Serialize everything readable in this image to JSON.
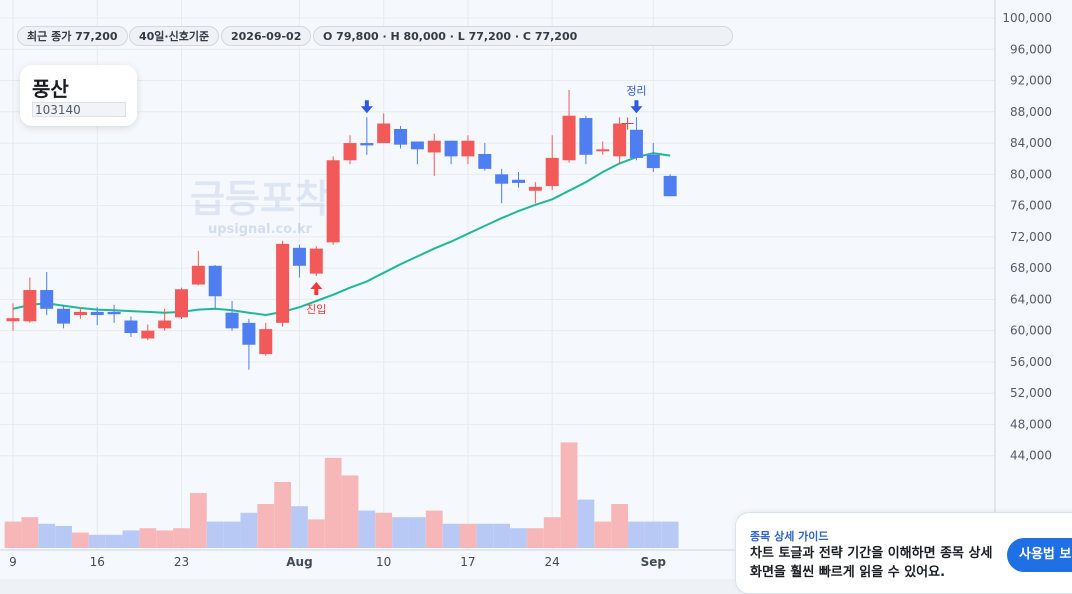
{
  "header": {
    "close_label": "최근 종가 77,200",
    "basis_label": "40일·신호기준",
    "date_label": "2026-09-02",
    "ohlc_label": "O 79,800 · H 80,000 · L 77,200 · C 77,200"
  },
  "stock": {
    "name": "풍산",
    "code": "103140"
  },
  "watermark": {
    "title": "급등포착",
    "url": "upsignal.co.kr"
  },
  "guide": {
    "title": "종목 상세 가이드",
    "body": "차트 토글과 전략 기간을 이해하면 종목 상세 화면을 훨씬 빠르게 읽을 수 있어요.",
    "button_label": "사용법 보기"
  },
  "colors": {
    "up": "#f25a5a",
    "down": "#4f7ef0",
    "ma": "#1fb89a",
    "vol_up": "#f7b7b9",
    "vol_down": "#b9c9f5",
    "grid": "#e6ebf2"
  },
  "chart_data": {
    "type": "candlestick",
    "ylim": [
      40000,
      100000
    ],
    "y_ticks": [
      44000,
      48000,
      52000,
      56000,
      60000,
      64000,
      68000,
      72000,
      76000,
      80000,
      84000,
      88000,
      92000,
      96000,
      100000
    ],
    "x_ticks": [
      {
        "index": 0,
        "label": "9"
      },
      {
        "index": 5,
        "label": "16"
      },
      {
        "index": 10,
        "label": "23"
      },
      {
        "index": 17,
        "label": "Aug"
      },
      {
        "index": 22,
        "label": "10"
      },
      {
        "index": 27,
        "label": "17"
      },
      {
        "index": 32,
        "label": "24"
      },
      {
        "index": 38,
        "label": "Sep"
      }
    ],
    "candles": [
      {
        "o": 61200,
        "h": 63500,
        "l": 60000,
        "c": 61600
      },
      {
        "o": 61200,
        "h": 66800,
        "l": 61000,
        "c": 65200
      },
      {
        "o": 65200,
        "h": 67500,
        "l": 62000,
        "c": 62800
      },
      {
        "o": 62800,
        "h": 63300,
        "l": 60300,
        "c": 60900
      },
      {
        "o": 62000,
        "h": 63000,
        "l": 61500,
        "c": 62400
      },
      {
        "o": 62400,
        "h": 63000,
        "l": 60700,
        "c": 62000
      },
      {
        "o": 62400,
        "h": 63300,
        "l": 61000,
        "c": 62100
      },
      {
        "o": 61300,
        "h": 61800,
        "l": 59200,
        "c": 59700
      },
      {
        "o": 59000,
        "h": 60800,
        "l": 58800,
        "c": 60000
      },
      {
        "o": 60300,
        "h": 62800,
        "l": 60000,
        "c": 61300
      },
      {
        "o": 61700,
        "h": 65500,
        "l": 61500,
        "c": 65300
      },
      {
        "o": 65900,
        "h": 70200,
        "l": 65800,
        "c": 68300
      },
      {
        "o": 68300,
        "h": 68400,
        "l": 62800,
        "c": 64400
      },
      {
        "o": 62300,
        "h": 63800,
        "l": 60000,
        "c": 60300
      },
      {
        "o": 61000,
        "h": 61500,
        "l": 55000,
        "c": 58200
      },
      {
        "o": 57000,
        "h": 61000,
        "l": 56800,
        "c": 60200
      },
      {
        "o": 61000,
        "h": 71500,
        "l": 60500,
        "c": 71100
      },
      {
        "o": 70600,
        "h": 71000,
        "l": 66800,
        "c": 68300
      },
      {
        "o": 67300,
        "h": 70800,
        "l": 67000,
        "c": 70500
      },
      {
        "o": 71300,
        "h": 82300,
        "l": 71000,
        "c": 81800
      },
      {
        "o": 81800,
        "h": 85000,
        "l": 81300,
        "c": 84000
      },
      {
        "o": 84000,
        "h": 87300,
        "l": 82500,
        "c": 83700
      },
      {
        "o": 84000,
        "h": 87800,
        "l": 84000,
        "c": 86500
      },
      {
        "o": 85800,
        "h": 86200,
        "l": 83300,
        "c": 83800
      },
      {
        "o": 84200,
        "h": 84200,
        "l": 81300,
        "c": 83200
      },
      {
        "o": 82800,
        "h": 85200,
        "l": 79800,
        "c": 84300
      },
      {
        "o": 84300,
        "h": 84300,
        "l": 81300,
        "c": 82300
      },
      {
        "o": 82300,
        "h": 85000,
        "l": 81300,
        "c": 84300
      },
      {
        "o": 82600,
        "h": 84000,
        "l": 80500,
        "c": 80700
      },
      {
        "o": 80000,
        "h": 80700,
        "l": 76300,
        "c": 78800
      },
      {
        "o": 79300,
        "h": 80300,
        "l": 78300,
        "c": 78900
      },
      {
        "o": 77900,
        "h": 79000,
        "l": 76300,
        "c": 78400
      },
      {
        "o": 78500,
        "h": 85000,
        "l": 78000,
        "c": 82100
      },
      {
        "o": 81800,
        "h": 90800,
        "l": 81500,
        "c": 87500
      },
      {
        "o": 87200,
        "h": 87500,
        "l": 81300,
        "c": 82500
      },
      {
        "o": 83200,
        "h": 84200,
        "l": 82500,
        "c": 83200
      },
      {
        "o": 82300,
        "h": 87300,
        "l": 81300,
        "c": 86500
      },
      {
        "o": 85700,
        "h": 87300,
        "l": 81800,
        "c": 82100
      },
      {
        "o": 82500,
        "h": 84000,
        "l": 80300,
        "c": 80800
      },
      {
        "o": 79800,
        "h": 80000,
        "l": 77200,
        "c": 77200
      }
    ],
    "ma": [
      62800,
      63300,
      63500,
      63200,
      62900,
      62700,
      62600,
      62500,
      62400,
      62300,
      62400,
      62700,
      62800,
      62600,
      62300,
      62000,
      62400,
      63000,
      63800,
      64600,
      65500,
      66300,
      67400,
      68500,
      69500,
      70500,
      71400,
      72400,
      73400,
      74400,
      75300,
      76100,
      76800,
      77900,
      79000,
      80300,
      81400,
      82200,
      82700,
      82400
    ],
    "volume": [
      12,
      14,
      11,
      10,
      7,
      6,
      6,
      8,
      9,
      8,
      9,
      25,
      12,
      12,
      16,
      20,
      30,
      19,
      13,
      41,
      33,
      17,
      16,
      14,
      14,
      17,
      11,
      11,
      11,
      11,
      9,
      9,
      14,
      48,
      22,
      12,
      20,
      12,
      12,
      12
    ],
    "markers": [
      {
        "index": 18,
        "type": "buy",
        "label": "진입"
      },
      {
        "index": 21,
        "type": "sell",
        "label": ""
      },
      {
        "index": 37,
        "type": "sell",
        "label": "정리"
      }
    ],
    "cursor_index": 36
  }
}
